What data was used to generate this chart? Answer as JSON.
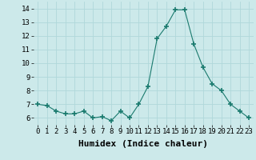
{
  "x": [
    0,
    1,
    2,
    3,
    4,
    5,
    6,
    7,
    8,
    9,
    10,
    11,
    12,
    13,
    14,
    15,
    16,
    17,
    18,
    19,
    20,
    21,
    22,
    23
  ],
  "y": [
    7.0,
    6.9,
    6.5,
    6.3,
    6.3,
    6.5,
    6.0,
    6.1,
    5.8,
    6.5,
    6.0,
    7.0,
    8.3,
    11.8,
    12.7,
    13.9,
    13.9,
    11.4,
    9.7,
    8.5,
    8.0,
    7.0,
    6.5,
    6.0
  ],
  "line_color": "#1a7a6e",
  "marker": "+",
  "marker_size": 4,
  "bg_color": "#cce9ea",
  "grid_color": "#b0d8da",
  "xlabel": "Humidex (Indice chaleur)",
  "xlabel_fontsize": 8,
  "xlabel_fontweight": "bold",
  "ylim": [
    5.5,
    14.5
  ],
  "xlim": [
    -0.5,
    23.5
  ],
  "yticks": [
    6,
    7,
    8,
    9,
    10,
    11,
    12,
    13,
    14
  ],
  "xticks": [
    0,
    1,
    2,
    3,
    4,
    5,
    6,
    7,
    8,
    9,
    10,
    11,
    12,
    13,
    14,
    15,
    16,
    17,
    18,
    19,
    20,
    21,
    22,
    23
  ],
  "tick_fontsize": 6.5
}
